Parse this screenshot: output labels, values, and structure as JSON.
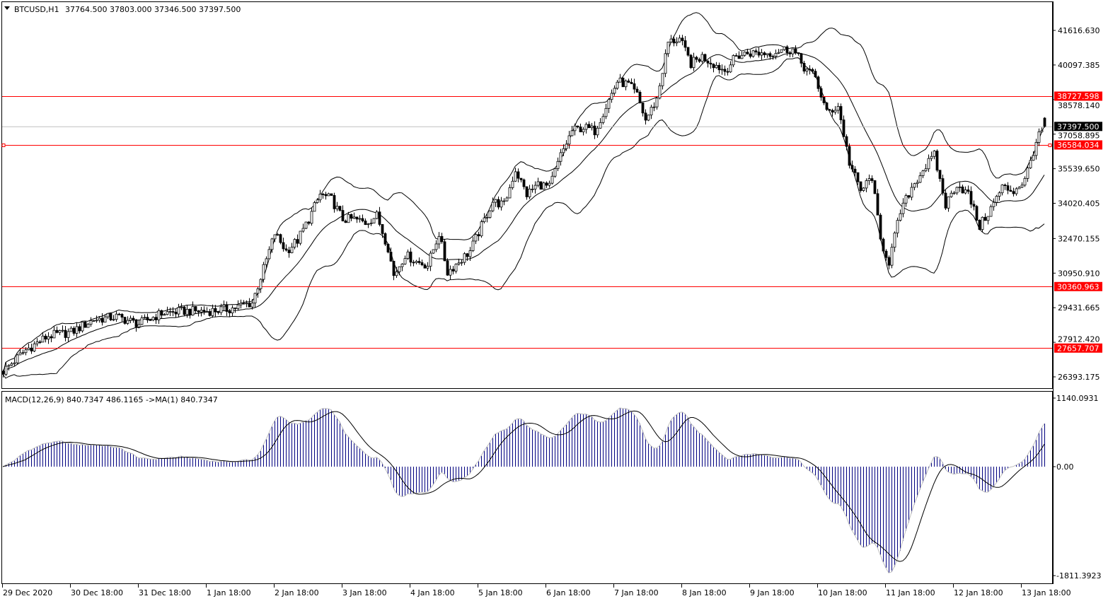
{
  "header": {
    "symbol": "BTCUSD,H1",
    "ohlc": "37764.500 37803.000 37346.500 37397.500"
  },
  "macd_header": "MACD(12,26,9) 840.7347 486.1165  ->MA(1) 840.7347",
  "colors": {
    "level_line": "#ff0000",
    "bid_line": "#c0c0c0",
    "macd_histogram": "#000080",
    "macd_ma": "#c0c0c0",
    "signal": "#000000",
    "candle_bull": "#ffffff",
    "candle_bear": "#000000"
  },
  "chart_data": [
    {
      "type": "candlestick",
      "title": "BTCUSD,H1",
      "last_bar": {
        "open": 37764.5,
        "high": 37803.0,
        "low": 37346.5,
        "close": 37397.5
      },
      "indicators": [
        "Bollinger Bands"
      ],
      "close_path": [
        [
          "29 Dec 18:00",
          26641
        ],
        [
          "30 Dec 02:00",
          27573
        ],
        [
          "30 Dec 10:00",
          28195
        ],
        [
          "30 Dec 18:00",
          28350
        ],
        [
          "31 Dec 02:00",
          28909
        ],
        [
          "31 Dec 10:00",
          29033
        ],
        [
          "31 Dec 18:00",
          28723
        ],
        [
          "1 Jan 02:00",
          29189
        ],
        [
          "1 Jan 10:00",
          29282
        ],
        [
          "1 Jan 18:00",
          29282
        ],
        [
          "2 Jan 02:00",
          29375
        ],
        [
          "2 Jan 10:00",
          29655
        ],
        [
          "2 Jan 14:00",
          31146
        ],
        [
          "2 Jan 18:00",
          32700
        ],
        [
          "2 Jan 22:00",
          31923
        ],
        [
          "3 Jan 02:00",
          32389
        ],
        [
          "3 Jan 06:00",
          33321
        ],
        [
          "3 Jan 10:00",
          34409
        ],
        [
          "3 Jan 14:00",
          34191
        ],
        [
          "3 Jan 18:00",
          33321
        ],
        [
          "3 Jan 22:00",
          33321
        ],
        [
          "4 Jan 02:00",
          33166
        ],
        [
          "4 Jan 06:00",
          33477
        ],
        [
          "4 Jan 10:00",
          32079
        ],
        [
          "4 Jan 12:00",
          30836
        ],
        [
          "4 Jan 16:00",
          31768
        ],
        [
          "4 Jan 20:00",
          31457
        ],
        [
          "5 Jan 00:00",
          31302
        ],
        [
          "5 Jan 04:00",
          32700
        ],
        [
          "5 Jan 07:00",
          30991
        ],
        [
          "5 Jan 11:00",
          31457
        ],
        [
          "5 Jan 15:00",
          31923
        ],
        [
          "5 Jan 19:00",
          33011
        ],
        [
          "5 Jan 23:00",
          34098
        ],
        [
          "6 Jan 03:00",
          33943
        ],
        [
          "6 Jan 07:00",
          35496
        ],
        [
          "6 Jan 11:00",
          34409
        ],
        [
          "6 Jan 15:00",
          34875
        ],
        [
          "6 Jan 19:00",
          34719
        ],
        [
          "6 Jan 23:00",
          36118
        ],
        [
          "7 Jan 03:00",
          37205
        ],
        [
          "7 Jan 07:00",
          37360
        ],
        [
          "7 Jan 11:00",
          37205
        ],
        [
          "7 Jan 15:00",
          38293
        ],
        [
          "7 Jan 19:00",
          39380
        ],
        [
          "7 Jan 23:00",
          39225
        ],
        [
          "8 Jan 02:00",
          38759
        ],
        [
          "8 Jan 05:00",
          37671
        ],
        [
          "8 Jan 09:00",
          38603
        ],
        [
          "8 Jan 13:00",
          41089
        ],
        [
          "8 Jan 17:00",
          41244
        ],
        [
          "8 Jan 21:00",
          40157
        ],
        [
          "9 Jan 01:00",
          40467
        ],
        [
          "9 Jan 05:00",
          40157
        ],
        [
          "9 Jan 09:00",
          39846
        ],
        [
          "9 Jan 13:00",
          40467
        ],
        [
          "9 Jan 17:00",
          40623
        ],
        [
          "9 Jan 21:00",
          40623
        ],
        [
          "10 Jan 01:00",
          40623
        ],
        [
          "10 Jan 05:00",
          40778
        ],
        [
          "10 Jan 09:00",
          40778
        ],
        [
          "10 Jan 13:00",
          40001
        ],
        [
          "10 Jan 17:00",
          39535
        ],
        [
          "10 Jan 21:00",
          37982
        ],
        [
          "11 Jan 01:00",
          38293
        ],
        [
          "11 Jan 05:00",
          35807
        ],
        [
          "11 Jan 09:00",
          34564
        ],
        [
          "11 Jan 13:00",
          35186
        ],
        [
          "11 Jan 16:00",
          32389
        ],
        [
          "11 Jan 19:00",
          31457
        ],
        [
          "11 Jan 23:00",
          33632
        ],
        [
          "12 Jan 03:00",
          34719
        ],
        [
          "12 Jan 07:00",
          35496
        ],
        [
          "12 Jan 11:00",
          36118
        ],
        [
          "12 Jan 15:00",
          33943
        ],
        [
          "12 Jan 19:00",
          34875
        ],
        [
          "12 Jan 23:00",
          34409
        ],
        [
          "13 Jan 03:00",
          33011
        ],
        [
          "13 Jan 07:00",
          33787
        ],
        [
          "13 Jan 11:00",
          34719
        ],
        [
          "13 Jan 15:00",
          34564
        ],
        [
          "13 Jan 19:00",
          35030
        ],
        [
          "13 Jan 23:00",
          36739
        ],
        [
          "14 Jan 02:00",
          37397.5
        ]
      ],
      "y_ticks": [
        "41616.630",
        "40097.385",
        "38578.140",
        "37058.895",
        "35539.650",
        "34020.405",
        "32470.155",
        "30950.910",
        "29431.665",
        "27912.420",
        "26393.175"
      ],
      "x_ticks": [
        "29 Dec 2020",
        "30 Dec 18:00",
        "31 Dec 18:00",
        "1 Jan 18:00",
        "2 Jan 18:00",
        "3 Jan 18:00",
        "4 Jan 18:00",
        "5 Jan 18:00",
        "6 Jan 18:00",
        "7 Jan 18:00",
        "8 Jan 18:00",
        "9 Jan 18:00",
        "10 Jan 18:00",
        "11 Jan 18:00",
        "12 Jan 18:00",
        "13 Jan 18:00"
      ],
      "levels": [
        "38727.598",
        "36584.034",
        "30360.963",
        "27657.707"
      ],
      "bid": "37397.500",
      "grid": false
    },
    {
      "type": "bar",
      "title": "MACD(12,26,9)",
      "y_ticks": [
        "1140.0931",
        "0.00",
        "-1811.3923"
      ],
      "ylim": [
        -1811.3923,
        1140.0931
      ],
      "values": {
        "macd": 840.7347,
        "signal": 486.1165,
        "ma": 840.7347
      }
    }
  ]
}
